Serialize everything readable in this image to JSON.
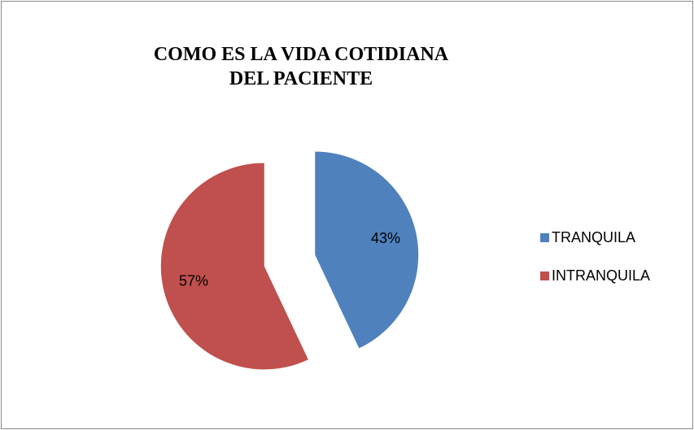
{
  "chart_data": {
    "type": "pie",
    "title": "COMO ES LA VIDA COTIDIANA DEL PACIENTE",
    "categories": [
      "TRANQUILA",
      "INTRANQUILA"
    ],
    "values": [
      43,
      57
    ],
    "value_labels": [
      "43%",
      "57%"
    ],
    "colors": [
      "#4f81bd",
      "#c0504d"
    ],
    "legend": "right",
    "exploded": true
  }
}
